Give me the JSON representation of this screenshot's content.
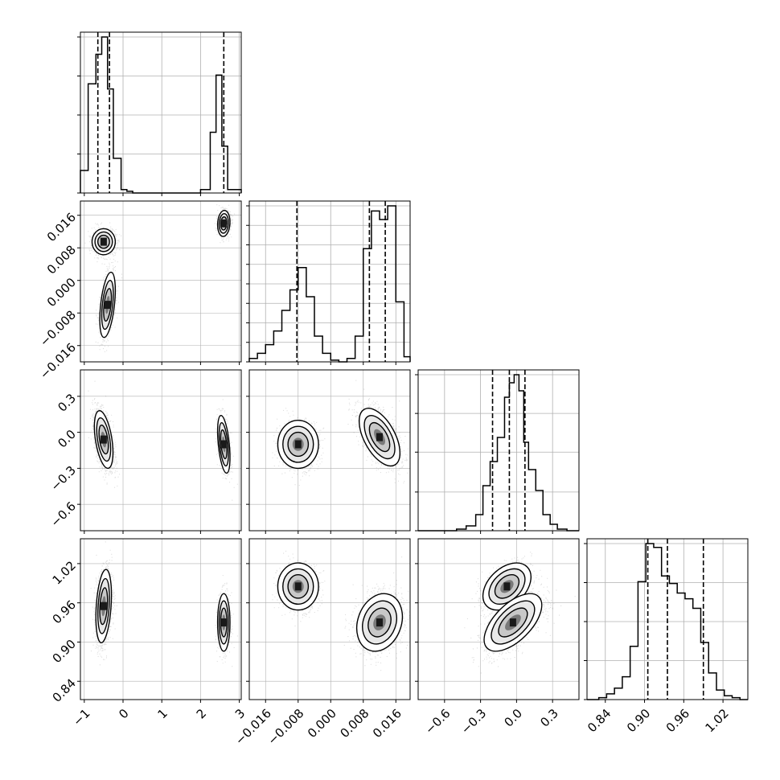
{
  "colors": {
    "background": "#ffffff",
    "axes": "#000000",
    "grid": "#b0b0b0",
    "quantile_line": "#000000"
  },
  "chart_data": {
    "type": "corner",
    "grid": true,
    "parameters": [
      {
        "range": [
          -1.1,
          3.05
        ],
        "ticks": [
          -1,
          0,
          1,
          2,
          3
        ],
        "tick_labels": [
          "−1",
          "0",
          "1",
          "2",
          "3"
        ],
        "quantiles": [
          -0.65,
          -0.35,
          2.6
        ],
        "histogram": {
          "type": "step",
          "bin_edges": [
            -1.1,
            -0.9,
            -0.7,
            -0.55,
            -0.4,
            -0.25,
            -0.05,
            0.1,
            0.25,
            2.0,
            2.25,
            2.4,
            2.55,
            2.7,
            2.85,
            3.05
          ],
          "counts": [
            0.13,
            0.63,
            0.8,
            0.9,
            0.6,
            0.2,
            0.02,
            0.01,
            0.0,
            0.02,
            0.35,
            0.68,
            0.27,
            0.02,
            0.02
          ]
        },
        "hist_ticks": [
          0.0,
          0.25,
          0.5,
          0.75,
          1.0
        ]
      },
      {
        "range": [
          -0.02,
          0.0195
        ],
        "ticks": [
          -0.016,
          -0.008,
          0.0,
          0.008,
          0.016
        ],
        "tick_labels": [
          "−0.016",
          "−0.008",
          "0.000",
          "0.008",
          "0.016"
        ],
        "quantiles": [
          -0.0083,
          0.0095,
          0.0134
        ],
        "histogram": {
          "type": "step",
          "bin_edges": [
            -0.02,
            -0.018,
            -0.016,
            -0.014,
            -0.012,
            -0.01,
            -0.008,
            -0.006,
            -0.004,
            -0.002,
            0.0,
            0.002,
            0.004,
            0.006,
            0.008,
            0.01,
            0.012,
            0.014,
            0.016,
            0.018,
            0.0195
          ],
          "counts": [
            0.02,
            0.05,
            0.1,
            0.18,
            0.3,
            0.42,
            0.55,
            0.38,
            0.15,
            0.05,
            0.01,
            0.0,
            0.02,
            0.15,
            0.66,
            0.88,
            0.83,
            0.91,
            0.35,
            0.03
          ]
        },
        "hist_ticks": [
          0.0,
          0.125,
          0.25,
          0.375,
          0.5,
          0.625,
          0.75,
          0.875,
          1.0
        ]
      },
      {
        "range": [
          -0.82,
          0.52
        ],
        "ticks": [
          -0.6,
          -0.3,
          0.0,
          0.3
        ],
        "tick_labels": [
          "−0.6",
          "−0.3",
          "0.0",
          "0.3"
        ],
        "quantiles": [
          -0.2,
          -0.06,
          0.07
        ],
        "histogram": {
          "type": "step",
          "bin_edges": [
            -0.82,
            -0.5,
            -0.42,
            -0.34,
            -0.28,
            -0.22,
            -0.16,
            -0.1,
            -0.06,
            -0.02,
            0.02,
            0.06,
            0.1,
            0.16,
            0.22,
            0.28,
            0.34,
            0.42,
            0.52
          ],
          "counts": [
            0.0,
            0.01,
            0.03,
            0.1,
            0.28,
            0.43,
            0.58,
            0.83,
            0.92,
            0.97,
            0.87,
            0.55,
            0.38,
            0.25,
            0.1,
            0.04,
            0.01,
            0.0
          ]
        },
        "hist_ticks": [
          0.0,
          0.33,
          0.67,
          1.0,
          1.33
        ]
      },
      {
        "range": [
          0.812,
          1.058
        ],
        "ticks": [
          0.84,
          0.9,
          0.96,
          1.02
        ],
        "tick_labels": [
          "0.84",
          "0.90",
          "0.96",
          "1.02"
        ],
        "quantiles": [
          0.905,
          0.935,
          0.99
        ],
        "histogram": {
          "type": "step",
          "bin_edges": [
            0.812,
            0.83,
            0.842,
            0.854,
            0.866,
            0.878,
            0.89,
            0.902,
            0.914,
            0.926,
            0.938,
            0.95,
            0.962,
            0.974,
            0.986,
            0.998,
            1.01,
            1.022,
            1.034,
            1.046,
            1.058
          ],
          "counts": [
            0.0,
            0.01,
            0.03,
            0.06,
            0.12,
            0.28,
            0.62,
            0.82,
            0.8,
            0.65,
            0.61,
            0.56,
            0.53,
            0.48,
            0.3,
            0.14,
            0.05,
            0.02,
            0.01,
            0.0
          ]
        },
        "hist_ticks": [
          0.0,
          0.25,
          0.5,
          0.75,
          1.0
        ]
      }
    ],
    "pairs": [
      {
        "x_param": 0,
        "y_param": 1,
        "clusters": [
          {
            "mx": -0.5,
            "my": 0.0095,
            "sx": 0.15,
            "sy": 0.0016,
            "rho": 0.0,
            "weight": 0.37
          },
          {
            "mx": -0.4,
            "my": -0.006,
            "sx": 0.1,
            "sy": 0.004,
            "rho": 0.45,
            "weight": 0.37
          },
          {
            "mx": 2.6,
            "my": 0.014,
            "sx": 0.08,
            "sy": 0.0016,
            "rho": 0.1,
            "weight": 0.26
          }
        ]
      },
      {
        "x_param": 0,
        "y_param": 2,
        "clusters": [
          {
            "mx": -0.5,
            "my": -0.06,
            "sx": 0.12,
            "sy": 0.12,
            "rho": -0.45,
            "weight": 0.74
          },
          {
            "mx": 2.6,
            "my": -0.1,
            "sx": 0.08,
            "sy": 0.12,
            "rho": -0.45,
            "weight": 0.26
          }
        ]
      },
      {
        "x_param": 1,
        "y_param": 2,
        "clusters": [
          {
            "mx": -0.008,
            "my": -0.1,
            "sx": 0.0025,
            "sy": 0.1,
            "rho": 0.0,
            "weight": 0.37
          },
          {
            "mx": 0.012,
            "my": -0.04,
            "sx": 0.0025,
            "sy": 0.12,
            "rho": -0.55,
            "weight": 0.63
          }
        ]
      },
      {
        "x_param": 0,
        "y_param": 3,
        "clusters": [
          {
            "mx": -0.5,
            "my": 0.955,
            "sx": 0.1,
            "sy": 0.028,
            "rho": 0.3,
            "weight": 0.74
          },
          {
            "mx": 2.6,
            "my": 0.93,
            "sx": 0.08,
            "sy": 0.022,
            "rho": 0.0,
            "weight": 0.26
          }
        ]
      },
      {
        "x_param": 1,
        "y_param": 3,
        "clusters": [
          {
            "mx": -0.008,
            "my": 0.985,
            "sx": 0.0025,
            "sy": 0.018,
            "rho": 0.0,
            "weight": 0.37
          },
          {
            "mx": 0.012,
            "my": 0.93,
            "sx": 0.0028,
            "sy": 0.022,
            "rho": 0.2,
            "weight": 0.63
          }
        ]
      },
      {
        "x_param": 2,
        "y_param": 3,
        "clusters": [
          {
            "mx": -0.08,
            "my": 0.985,
            "sx": 0.1,
            "sy": 0.018,
            "rho": 0.4,
            "weight": 0.37
          },
          {
            "mx": -0.03,
            "my": 0.93,
            "sx": 0.12,
            "sy": 0.022,
            "rho": 0.6,
            "weight": 0.63
          }
        ]
      }
    ]
  }
}
